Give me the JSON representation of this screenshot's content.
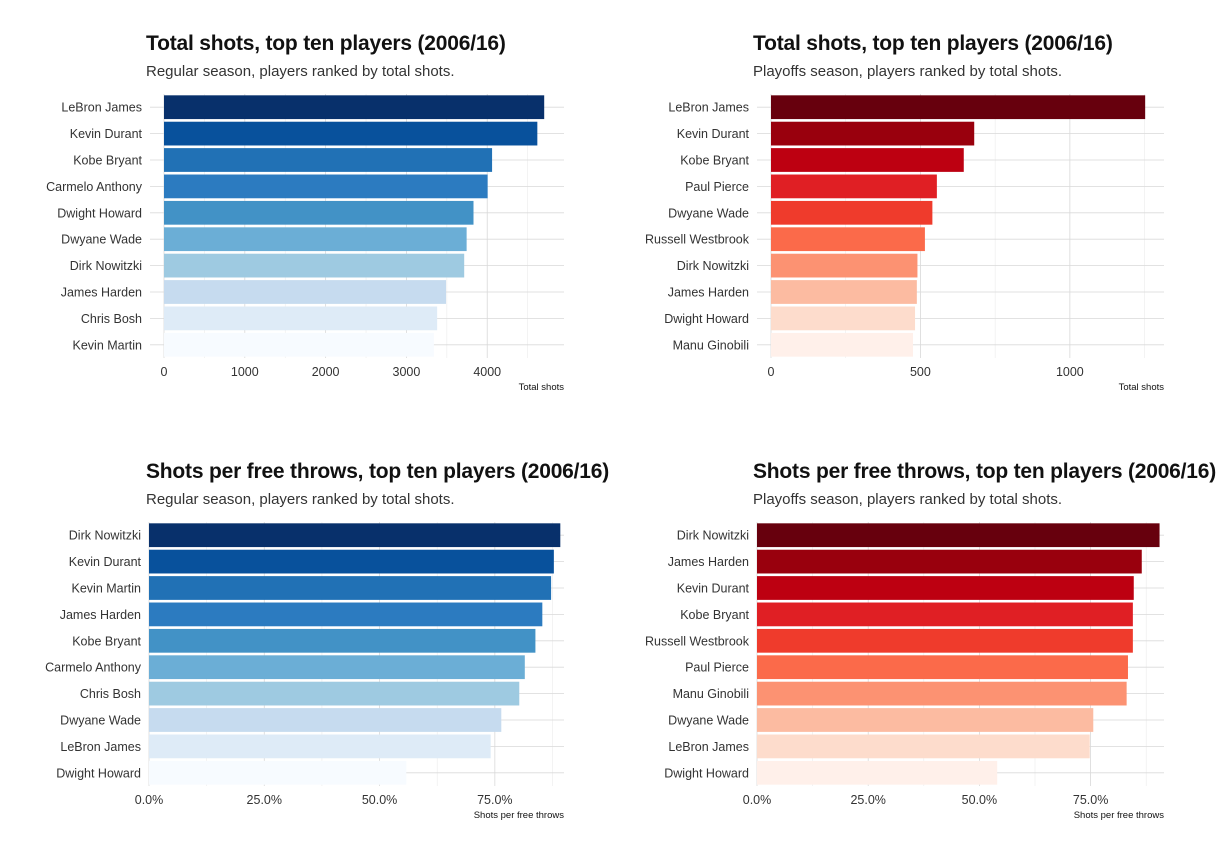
{
  "chart_data": [
    {
      "type": "bar",
      "orientation": "horizontal",
      "title": "Total shots, top ten players (2006/16)",
      "subtitle": "Regular season, players ranked by total shots.",
      "xlabel": "Total shots",
      "categories": [
        "LeBron James",
        "Kevin Durant",
        "Kobe Bryant",
        "Carmelo Anthony",
        "Dwight Howard",
        "Dwyane Wade",
        "Dirk Nowitzki",
        "James Harden",
        "Chris Bosh",
        "Kevin Martin"
      ],
      "values": [
        4705,
        4620,
        4060,
        4005,
        3830,
        3745,
        3715,
        3490,
        3380,
        3340
      ],
      "xlim": [
        0,
        4950
      ],
      "xticks": [
        0,
        1000,
        2000,
        3000,
        4000
      ],
      "xtick_labels": [
        "0",
        "1000",
        "2000",
        "3000",
        "4000"
      ],
      "colors": [
        "#08306b",
        "#08519c",
        "#2171b5",
        "#2c7bc0",
        "#4292c6",
        "#6baed6",
        "#9ecae1",
        "#c6dbef",
        "#deebf7",
        "#f7fbff"
      ],
      "grid": true,
      "legend": "none"
    },
    {
      "type": "bar",
      "orientation": "horizontal",
      "title": "Total shots, top ten players (2006/16)",
      "subtitle": "Playoffs season, players ranked by total shots.",
      "xlabel": "Total shots",
      "categories": [
        "LeBron James",
        "Kevin Durant",
        "Kobe Bryant",
        "Paul Pierce",
        "Dwyane Wade",
        "Russell Westbrook",
        "Dirk Nowitzki",
        "James Harden",
        "Dwight Howard",
        "Manu Ginobili"
      ],
      "values": [
        1252,
        680,
        645,
        555,
        540,
        515,
        490,
        488,
        482,
        475
      ],
      "xlim": [
        0,
        1315
      ],
      "xticks": [
        0,
        500,
        1000
      ],
      "xtick_labels": [
        "0",
        "500",
        "1000"
      ],
      "colors": [
        "#67000d",
        "#99000d",
        "#bd0011",
        "#e01f24",
        "#ef3b2c",
        "#fb6a4a",
        "#fc9272",
        "#fcbba1",
        "#fddccc",
        "#fff0ea"
      ],
      "grid": true,
      "legend": "none"
    },
    {
      "type": "bar",
      "orientation": "horizontal",
      "title": "Shots per free throws, top ten players (2006/16)",
      "subtitle": "Regular season, players ranked by total shots.",
      "xlabel": "Shots per free throws",
      "categories": [
        "Dirk Nowitzki",
        "Kevin Durant",
        "Kevin Martin",
        "James Harden",
        "Kobe Bryant",
        "Carmelo Anthony",
        "Chris Bosh",
        "Dwyane Wade",
        "LeBron James",
        "Dwight Howard"
      ],
      "values": [
        0.892,
        0.878,
        0.872,
        0.853,
        0.838,
        0.815,
        0.803,
        0.764,
        0.741,
        0.558
      ],
      "xlim": [
        0,
        0.9
      ],
      "xticks": [
        0,
        0.25,
        0.5,
        0.75
      ],
      "xtick_labels": [
        "0.0%",
        "25.0%",
        "50.0%",
        "75.0%"
      ],
      "colors": [
        "#08306b",
        "#08519c",
        "#2171b5",
        "#2c7bc0",
        "#4292c6",
        "#6baed6",
        "#9ecae1",
        "#c6dbef",
        "#deebf7",
        "#f7fbff"
      ],
      "grid": true,
      "legend": "none"
    },
    {
      "type": "bar",
      "orientation": "horizontal",
      "title": "Shots per free throws, top ten players (2006/16)",
      "subtitle": "Playoffs season, players ranked by total shots.",
      "xlabel": "Shots per free throws",
      "categories": [
        "Dirk Nowitzki",
        "James Harden",
        "Kevin Durant",
        "Kobe Bryant",
        "Russell Westbrook",
        "Paul Pierce",
        "Manu Ginobili",
        "Dwyane Wade",
        "LeBron James",
        "Dwight Howard"
      ],
      "values": [
        0.905,
        0.865,
        0.847,
        0.845,
        0.845,
        0.834,
        0.831,
        0.756,
        0.748,
        0.54
      ],
      "xlim": [
        0,
        0.915
      ],
      "xticks": [
        0,
        0.25,
        0.5,
        0.75
      ],
      "xtick_labels": [
        "0.0%",
        "25.0%",
        "50.0%",
        "75.0%"
      ],
      "colors": [
        "#67000d",
        "#99000d",
        "#bd0011",
        "#e01f24",
        "#ef3b2c",
        "#fb6a4a",
        "#fc9272",
        "#fcbba1",
        "#fddccc",
        "#fff0ea"
      ],
      "grid": true,
      "legend": "none"
    }
  ]
}
